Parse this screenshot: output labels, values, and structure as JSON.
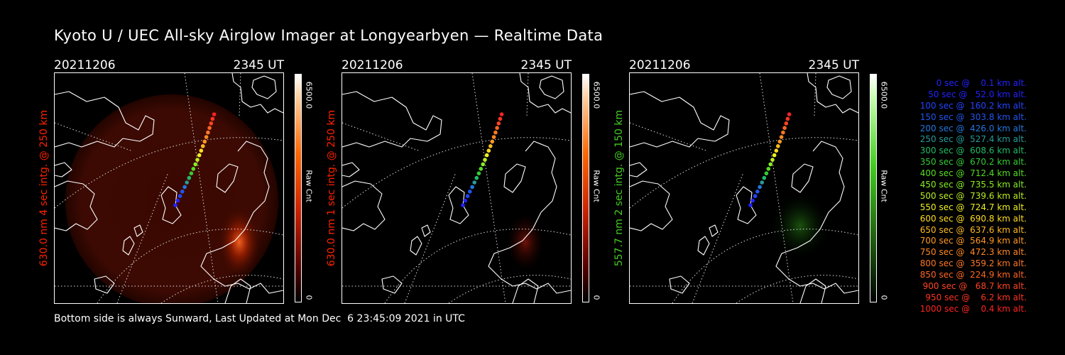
{
  "title": "Kyoto U / UEC All-sky Airglow Imager at Longyearbyen — Realtime Data",
  "panels": [
    {
      "date": "20211206",
      "time": "2345 UT",
      "ylabel": "630.0 nm 4 sec intg. @ 250 km",
      "cbar_max": "6500.0",
      "cbar_unit": "Raw Cnt",
      "cbar_min": "0",
      "channel_color": "#ff2200",
      "glow": "red"
    },
    {
      "date": "20211206",
      "time": "2345 UT",
      "ylabel": "630.0 nm 1 sec intg. @ 250 km",
      "cbar_max": "6500.0",
      "cbar_unit": "Raw Cnt",
      "cbar_min": "0",
      "channel_color": "#ff2200",
      "glow": "red-faint"
    },
    {
      "date": "20211206",
      "time": "2345 UT",
      "ylabel": "557.7 nm 2 sec intg. @ 150 km",
      "cbar_max": "6500.0",
      "cbar_unit": "Raw Cnt",
      "cbar_min": "0",
      "channel_color": "#44cc22",
      "glow": "green"
    }
  ],
  "legend": [
    {
      "text": "   0 sec @    0.1 km alt.",
      "color": "#2222ff"
    },
    {
      "text": "  50 sec @   52.0 km alt.",
      "color": "#2222ff"
    },
    {
      "text": " 100 sec @  160.2 km alt.",
      "color": "#2244ff"
    },
    {
      "text": " 150 sec @  303.8 km alt.",
      "color": "#2255ee"
    },
    {
      "text": " 200 sec @  426.0 km alt.",
      "color": "#2277dd"
    },
    {
      "text": " 250 sec @  527.4 km alt.",
      "color": "#2a9a9a"
    },
    {
      "text": " 300 sec @  608.6 km alt.",
      "color": "#22bb66"
    },
    {
      "text": " 350 sec @  670.2 km alt.",
      "color": "#33cc33"
    },
    {
      "text": " 400 sec @  712.4 km alt.",
      "color": "#55dd22"
    },
    {
      "text": " 450 sec @  735.5 km alt.",
      "color": "#88ee22"
    },
    {
      "text": " 500 sec @  739.6 km alt.",
      "color": "#bbee22"
    },
    {
      "text": " 550 sec @  724.7 km alt.",
      "color": "#eeee22"
    },
    {
      "text": " 600 sec @  690.8 km alt.",
      "color": "#ffdd22"
    },
    {
      "text": " 650 sec @  637.6 km alt.",
      "color": "#ffbb22"
    },
    {
      "text": " 700 sec @  564.9 km alt.",
      "color": "#ff9922"
    },
    {
      "text": " 750 sec @  472.3 km alt.",
      "color": "#ff8822"
    },
    {
      "text": " 800 sec @  359.2 km alt.",
      "color": "#ff7722"
    },
    {
      "text": " 850 sec @  224.9 km alt.",
      "color": "#ff6622"
    },
    {
      "text": " 900 sec @   68.7 km alt.",
      "color": "#ff4422"
    },
    {
      "text": " 950 sec @    6.2 km alt.",
      "color": "#ff3322"
    },
    {
      "text": "1000 sec @    0.4 km alt.",
      "color": "#ff2222"
    }
  ],
  "footer": "Bottom side is always Sunward, Last Updated at Mon Dec  6 23:45:09 2021 in UTC"
}
